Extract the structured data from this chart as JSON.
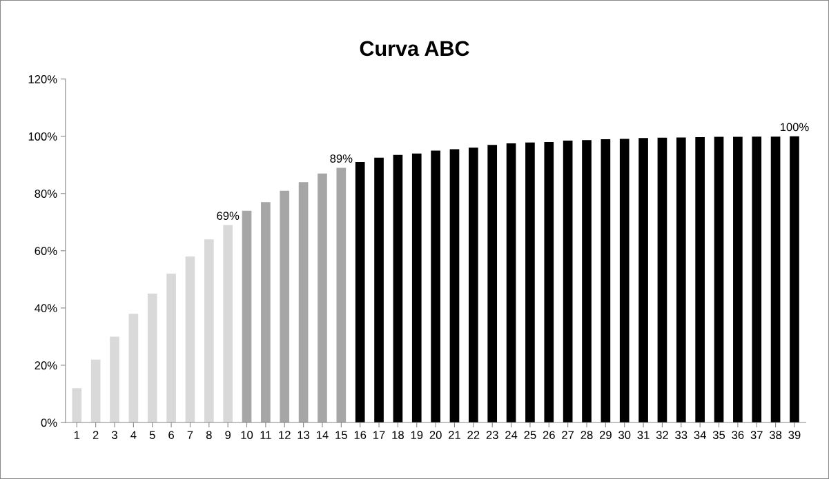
{
  "chart_data": {
    "type": "bar",
    "title": "Curva ABC",
    "categories": [
      "1",
      "2",
      "3",
      "4",
      "5",
      "6",
      "7",
      "8",
      "9",
      "10",
      "11",
      "12",
      "13",
      "14",
      "15",
      "16",
      "17",
      "18",
      "19",
      "20",
      "21",
      "22",
      "23",
      "24",
      "25",
      "26",
      "27",
      "28",
      "29",
      "30",
      "31",
      "32",
      "33",
      "34",
      "35",
      "36",
      "37",
      "38",
      "39"
    ],
    "values": [
      12,
      22,
      30,
      38,
      45,
      52,
      58,
      64,
      69,
      74,
      77,
      81,
      84,
      87,
      89,
      91,
      92.5,
      93.5,
      94,
      95,
      95.5,
      96,
      97,
      97.5,
      97.8,
      98,
      98.5,
      98.7,
      99,
      99.1,
      99.4,
      99.5,
      99.6,
      99.7,
      99.8,
      99.8,
      99.9,
      99.9,
      100
    ],
    "colors": [
      "#d9d9d9",
      "#d9d9d9",
      "#d9d9d9",
      "#d9d9d9",
      "#d9d9d9",
      "#d9d9d9",
      "#d9d9d9",
      "#d9d9d9",
      "#d9d9d9",
      "#a6a6a6",
      "#a6a6a6",
      "#a6a6a6",
      "#a6a6a6",
      "#a6a6a6",
      "#a6a6a6",
      "#000000",
      "#000000",
      "#000000",
      "#000000",
      "#000000",
      "#000000",
      "#000000",
      "#000000",
      "#000000",
      "#000000",
      "#000000",
      "#000000",
      "#000000",
      "#000000",
      "#000000",
      "#000000",
      "#000000",
      "#000000",
      "#000000",
      "#000000",
      "#000000",
      "#000000",
      "#000000",
      "#000000"
    ],
    "value_labels": [
      null,
      null,
      null,
      null,
      null,
      null,
      null,
      null,
      "69%",
      null,
      null,
      null,
      null,
      null,
      "89%",
      null,
      null,
      null,
      null,
      null,
      null,
      null,
      null,
      null,
      null,
      null,
      null,
      null,
      null,
      null,
      null,
      null,
      null,
      null,
      null,
      null,
      null,
      null,
      "100%"
    ],
    "ylim": [
      0,
      120
    ],
    "yticks": [
      {
        "value": 0,
        "label": "0%"
      },
      {
        "value": 20,
        "label": "20%"
      },
      {
        "value": 40,
        "label": "40%"
      },
      {
        "value": 60,
        "label": "60%"
      },
      {
        "value": 80,
        "label": "80%"
      },
      {
        "value": 100,
        "label": "100%"
      },
      {
        "value": 120,
        "label": "120%"
      }
    ],
    "grid": false,
    "legend": false
  }
}
